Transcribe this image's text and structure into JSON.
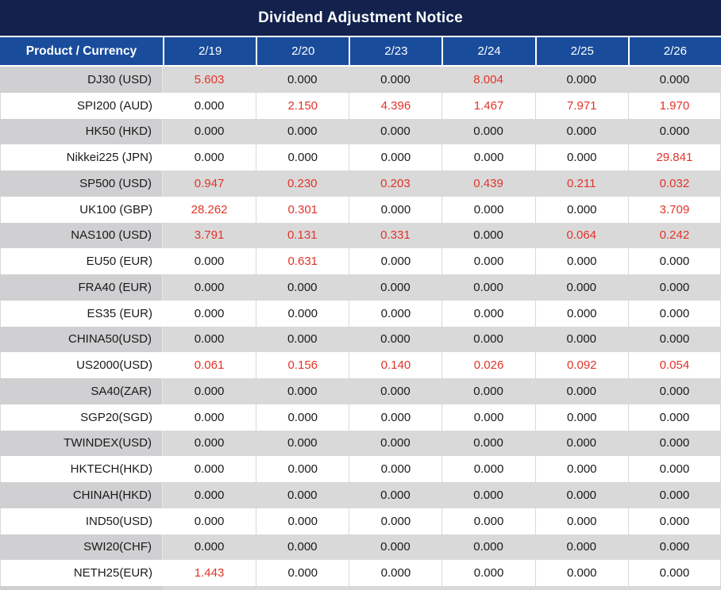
{
  "title": "Dividend Adjustment Notice",
  "colors": {
    "title_bg": "#12224d",
    "header_bg": "#1a4c9c",
    "header_text": "#ffffff",
    "divider_white": "#ffffff",
    "row_gray": "#d9d9d9",
    "label_gray": "#d0cfd1",
    "grid_line": "#d9d9d9",
    "red": "#e23329",
    "text": "#1a1a1a"
  },
  "table": {
    "header": [
      "Product / Currency",
      "2/19",
      "2/20",
      "2/23",
      "2/24",
      "2/25",
      "2/26"
    ],
    "rows": [
      {
        "product": "DJ30 (USD)",
        "values": [
          "5.603",
          "0.000",
          "0.000",
          "8.004",
          "0.000",
          "0.000"
        ],
        "red": [
          true,
          false,
          false,
          true,
          false,
          false
        ]
      },
      {
        "product": "SPI200 (AUD)",
        "values": [
          "0.000",
          "2.150",
          "4.396",
          "1.467",
          "7.971",
          "1.970"
        ],
        "red": [
          false,
          true,
          true,
          true,
          true,
          true
        ]
      },
      {
        "product": "HK50 (HKD)",
        "values": [
          "0.000",
          "0.000",
          "0.000",
          "0.000",
          "0.000",
          "0.000"
        ],
        "red": [
          false,
          false,
          false,
          false,
          false,
          false
        ]
      },
      {
        "product": "Nikkei225 (JPN)",
        "values": [
          "0.000",
          "0.000",
          "0.000",
          "0.000",
          "0.000",
          "29.841"
        ],
        "red": [
          false,
          false,
          false,
          false,
          false,
          true
        ]
      },
      {
        "product": "SP500 (USD)",
        "values": [
          "0.947",
          "0.230",
          "0.203",
          "0.439",
          "0.211",
          "0.032"
        ],
        "red": [
          true,
          true,
          true,
          true,
          true,
          true
        ]
      },
      {
        "product": "UK100 (GBP)",
        "values": [
          "28.262",
          "0.301",
          "0.000",
          "0.000",
          "0.000",
          "3.709"
        ],
        "red": [
          true,
          true,
          false,
          false,
          false,
          true
        ]
      },
      {
        "product": "NAS100 (USD)",
        "values": [
          "3.791",
          "0.131",
          "0.331",
          "0.000",
          "0.064",
          "0.242"
        ],
        "red": [
          true,
          true,
          true,
          false,
          true,
          true
        ]
      },
      {
        "product": "EU50 (EUR)",
        "values": [
          "0.000",
          "0.631",
          "0.000",
          "0.000",
          "0.000",
          "0.000"
        ],
        "red": [
          false,
          true,
          false,
          false,
          false,
          false
        ]
      },
      {
        "product": "FRA40 (EUR)",
        "values": [
          "0.000",
          "0.000",
          "0.000",
          "0.000",
          "0.000",
          "0.000"
        ],
        "red": [
          false,
          false,
          false,
          false,
          false,
          false
        ]
      },
      {
        "product": "ES35 (EUR)",
        "values": [
          "0.000",
          "0.000",
          "0.000",
          "0.000",
          "0.000",
          "0.000"
        ],
        "red": [
          false,
          false,
          false,
          false,
          false,
          false
        ]
      },
      {
        "product": "CHINA50(USD)",
        "values": [
          "0.000",
          "0.000",
          "0.000",
          "0.000",
          "0.000",
          "0.000"
        ],
        "red": [
          false,
          false,
          false,
          false,
          false,
          false
        ]
      },
      {
        "product": "US2000(USD)",
        "values": [
          "0.061",
          "0.156",
          "0.140",
          "0.026",
          "0.092",
          "0.054"
        ],
        "red": [
          true,
          true,
          true,
          true,
          true,
          true
        ]
      },
      {
        "product": "SA40(ZAR)",
        "values": [
          "0.000",
          "0.000",
          "0.000",
          "0.000",
          "0.000",
          "0.000"
        ],
        "red": [
          false,
          false,
          false,
          false,
          false,
          false
        ]
      },
      {
        "product": "SGP20(SGD)",
        "values": [
          "0.000",
          "0.000",
          "0.000",
          "0.000",
          "0.000",
          "0.000"
        ],
        "red": [
          false,
          false,
          false,
          false,
          false,
          false
        ]
      },
      {
        "product": "TWINDEX(USD)",
        "values": [
          "0.000",
          "0.000",
          "0.000",
          "0.000",
          "0.000",
          "0.000"
        ],
        "red": [
          false,
          false,
          false,
          false,
          false,
          false
        ]
      },
      {
        "product": "HKTECH(HKD)",
        "values": [
          "0.000",
          "0.000",
          "0.000",
          "0.000",
          "0.000",
          "0.000"
        ],
        "red": [
          false,
          false,
          false,
          false,
          false,
          false
        ]
      },
      {
        "product": "CHINAH(HKD)",
        "values": [
          "0.000",
          "0.000",
          "0.000",
          "0.000",
          "0.000",
          "0.000"
        ],
        "red": [
          false,
          false,
          false,
          false,
          false,
          false
        ]
      },
      {
        "product": "IND50(USD)",
        "values": [
          "0.000",
          "0.000",
          "0.000",
          "0.000",
          "0.000",
          "0.000"
        ],
        "red": [
          false,
          false,
          false,
          false,
          false,
          false
        ]
      },
      {
        "product": "SWI20(CHF)",
        "values": [
          "0.000",
          "0.000",
          "0.000",
          "0.000",
          "0.000",
          "0.000"
        ],
        "red": [
          false,
          false,
          false,
          false,
          false,
          false
        ]
      },
      {
        "product": "NETH25(EUR)",
        "values": [
          "1.443",
          "0.000",
          "0.000",
          "0.000",
          "0.000",
          "0.000"
        ],
        "red": [
          true,
          false,
          false,
          false,
          false,
          false
        ]
      }
    ]
  }
}
